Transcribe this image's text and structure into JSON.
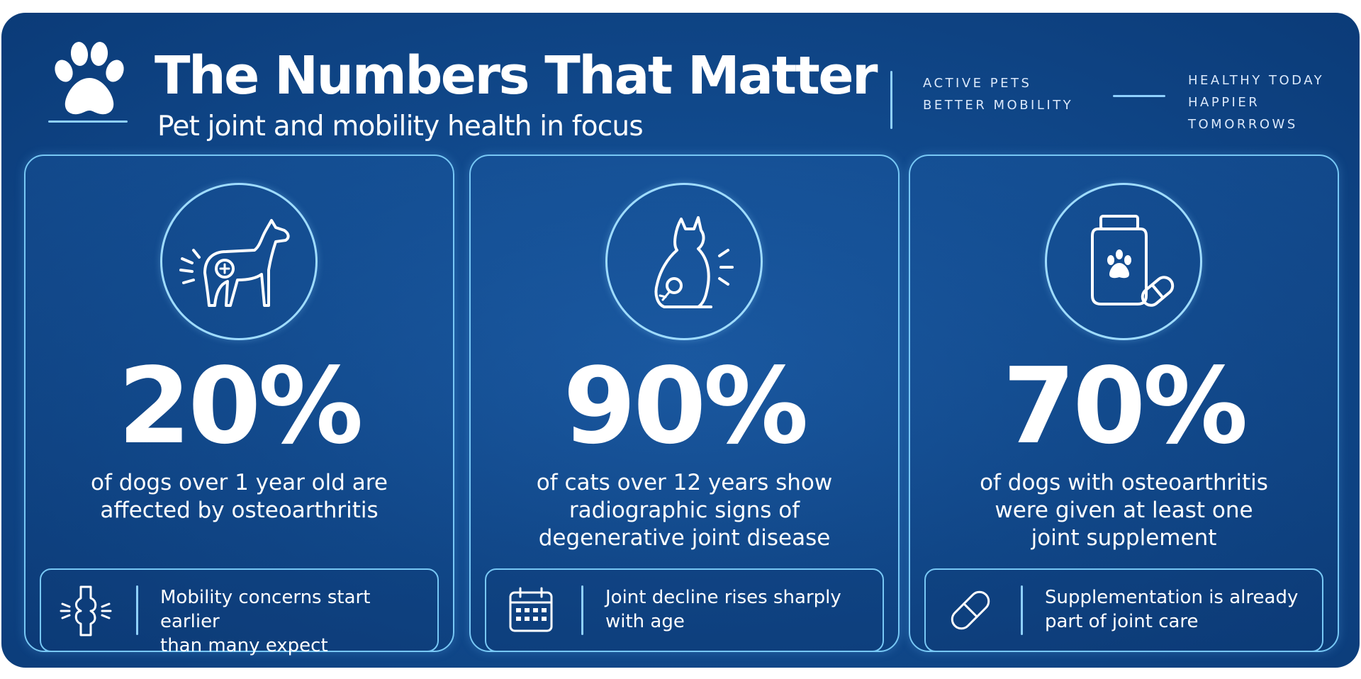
{
  "header": {
    "title": "The Numbers That Matter",
    "subtitle": "Pet joint and mobility health in focus",
    "logo_icon": "paw-icon",
    "tagline_left": [
      "ACTIVE PETS",
      "BETTER MOBILITY"
    ],
    "tagline_right": [
      "HEALTHY TODAY",
      "HAPPIER",
      "TOMORROWS"
    ]
  },
  "cards": [
    {
      "icon": "dog-joint-icon",
      "stat": "20%",
      "description": [
        "of dogs over 1 year old are",
        "affected by osteoarthritis"
      ],
      "note_icon": "joint-icon",
      "note": [
        "Mobility concerns start earlier",
        "than many expect"
      ]
    },
    {
      "icon": "cat-joint-icon",
      "stat": "90%",
      "description": [
        "of cats over 12 years show",
        "radiographic signs of",
        "degenerative joint disease"
      ],
      "note_icon": "calendar-icon",
      "note": [
        "Joint decline rises sharply",
        "with age"
      ]
    },
    {
      "icon": "supplement-bottle-icon",
      "stat": "70%",
      "description": [
        "of dogs with osteoarthritis",
        "were given at least one",
        "joint supplement"
      ],
      "note_icon": "capsule-icon",
      "note": [
        "Supplementation is already",
        "part of joint care"
      ]
    }
  ],
  "colors": {
    "background": "#114a8d",
    "accent": "#8fd0ff",
    "text": "#ffffff"
  }
}
